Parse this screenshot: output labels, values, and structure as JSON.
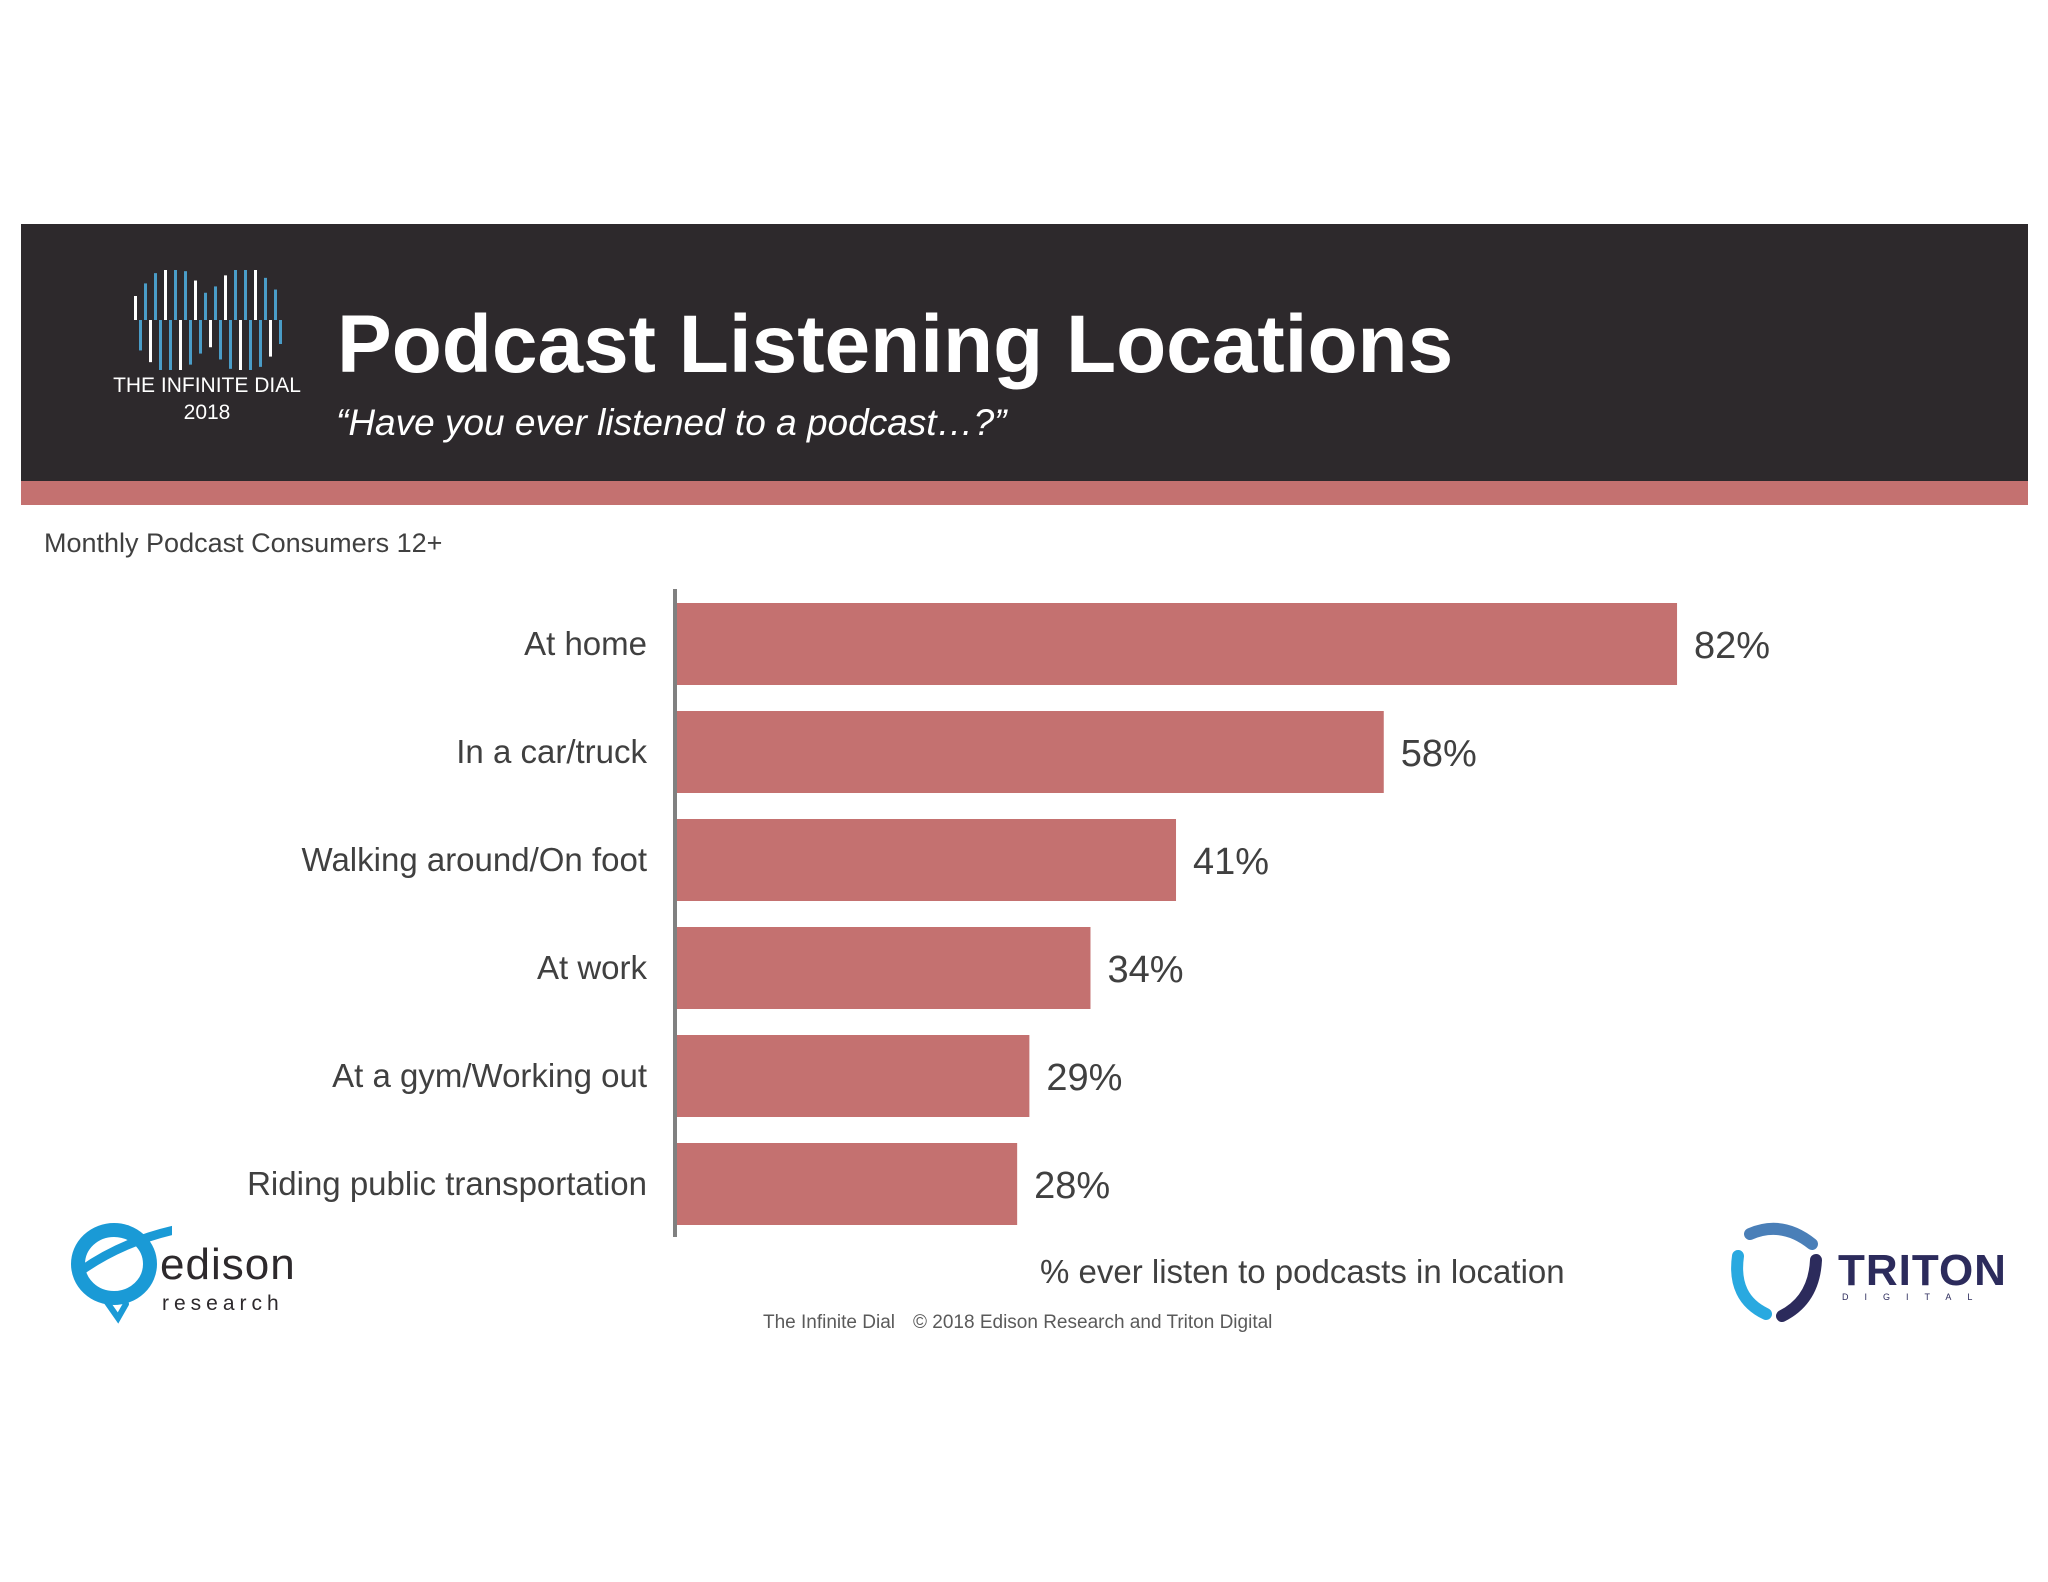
{
  "header": {
    "title": "Podcast Listening Locations",
    "subtitle": "“Have you ever listened to a podcast…?”",
    "logo_name": "THE INFINITE DIAL",
    "logo_year": "2018"
  },
  "segment_label": "Monthly Podcast Consumers 12+",
  "chart_data": {
    "type": "bar",
    "orientation": "horizontal",
    "categories": [
      "At home",
      "In a car/truck",
      "Walking around/On foot",
      "At work",
      "At a gym/Working out",
      "Riding public transportation"
    ],
    "values": [
      82,
      58,
      41,
      34,
      29,
      28
    ],
    "value_labels": [
      "82%",
      "58%",
      "41%",
      "34%",
      "29%",
      "28%"
    ],
    "xlabel": "% ever listen to podcasts in location",
    "xlim": [
      0,
      100
    ],
    "bar_color": "#c47170",
    "grid": false,
    "legend": "none"
  },
  "footer": {
    "source": "The Infinite Dial",
    "copyright": "© 2018 Edison Research and Triton Digital"
  },
  "logos": {
    "edison_word": "edison",
    "edison_sub": "research",
    "triton_word": "TRITON",
    "triton_sub": "DIGITAL"
  },
  "colors": {
    "banner": "#2d292c",
    "accent": "#c47170",
    "logo_blue": "#4a9cc7",
    "edison_blue": "#1a9ad6",
    "triton_navy": "#2c2b5c"
  }
}
